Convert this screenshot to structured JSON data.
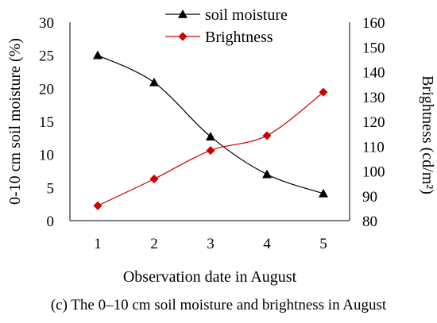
{
  "caption": "(c) The 0–10 cm soil moisture and brightness in August",
  "chart_data": {
    "type": "line",
    "x": [
      1,
      2,
      3,
      4,
      5
    ],
    "xticks": [
      "1",
      "2",
      "3",
      "4",
      "5"
    ],
    "xlabel": "Observation date in August",
    "ylabel_left": "0-10 cm soil moisture (%)",
    "ylabel_right": "Brightness (cd/m²)",
    "y_left_lim": [
      0,
      30
    ],
    "y_left_ticks": [
      "0",
      "5",
      "10",
      "15",
      "20",
      "25",
      "30"
    ],
    "y_right_lim": [
      80,
      160
    ],
    "y_right_ticks": [
      "80",
      "90",
      "100",
      "110",
      "120",
      "130",
      "140",
      "150",
      "160"
    ],
    "grid": false,
    "legend_position": "top-center",
    "series": [
      {
        "name": "soil moisture",
        "axis": "left",
        "color": "#000000",
        "marker": "triangle",
        "values": [
          25.0,
          20.9,
          12.7,
          7.0,
          4.1
        ]
      },
      {
        "name": "Brightness",
        "axis": "right",
        "color": "#cc0000",
        "marker": "diamond",
        "values": [
          86.0,
          96.8,
          108.3,
          114.3,
          131.8
        ]
      }
    ]
  }
}
